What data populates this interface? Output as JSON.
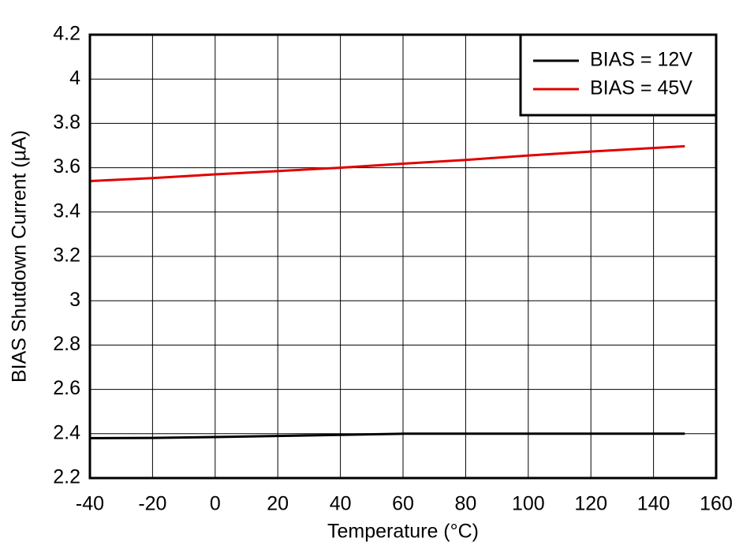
{
  "chart_data": {
    "type": "line",
    "x_label": "Temperature (°C)",
    "y_label": "BIAS Shutdown Current (µA)",
    "x": [
      -40,
      -20,
      0,
      20,
      40,
      60,
      80,
      100,
      120,
      150
    ],
    "series": [
      {
        "name": "BIAS = 12V",
        "color": "#000000",
        "values": [
          2.38,
          2.381,
          2.385,
          2.39,
          2.395,
          2.4,
          2.4,
          2.4,
          2.4,
          2.4
        ]
      },
      {
        "name": "BIAS = 45V",
        "color": "#e00000",
        "values": [
          3.54,
          3.553,
          3.57,
          3.585,
          3.6,
          3.618,
          3.635,
          3.655,
          3.673,
          3.697
        ]
      }
    ],
    "xlim": [
      -40,
      160
    ],
    "xticks": [
      -40,
      -20,
      0,
      20,
      40,
      60,
      80,
      100,
      120,
      140,
      160
    ],
    "ylim": [
      2.2,
      4.2
    ],
    "yticks": [
      2.2,
      2.4,
      2.6,
      2.8,
      3,
      3.2,
      3.4,
      3.6,
      3.8,
      4,
      4.2
    ],
    "grid": true,
    "legend": "upper right"
  }
}
